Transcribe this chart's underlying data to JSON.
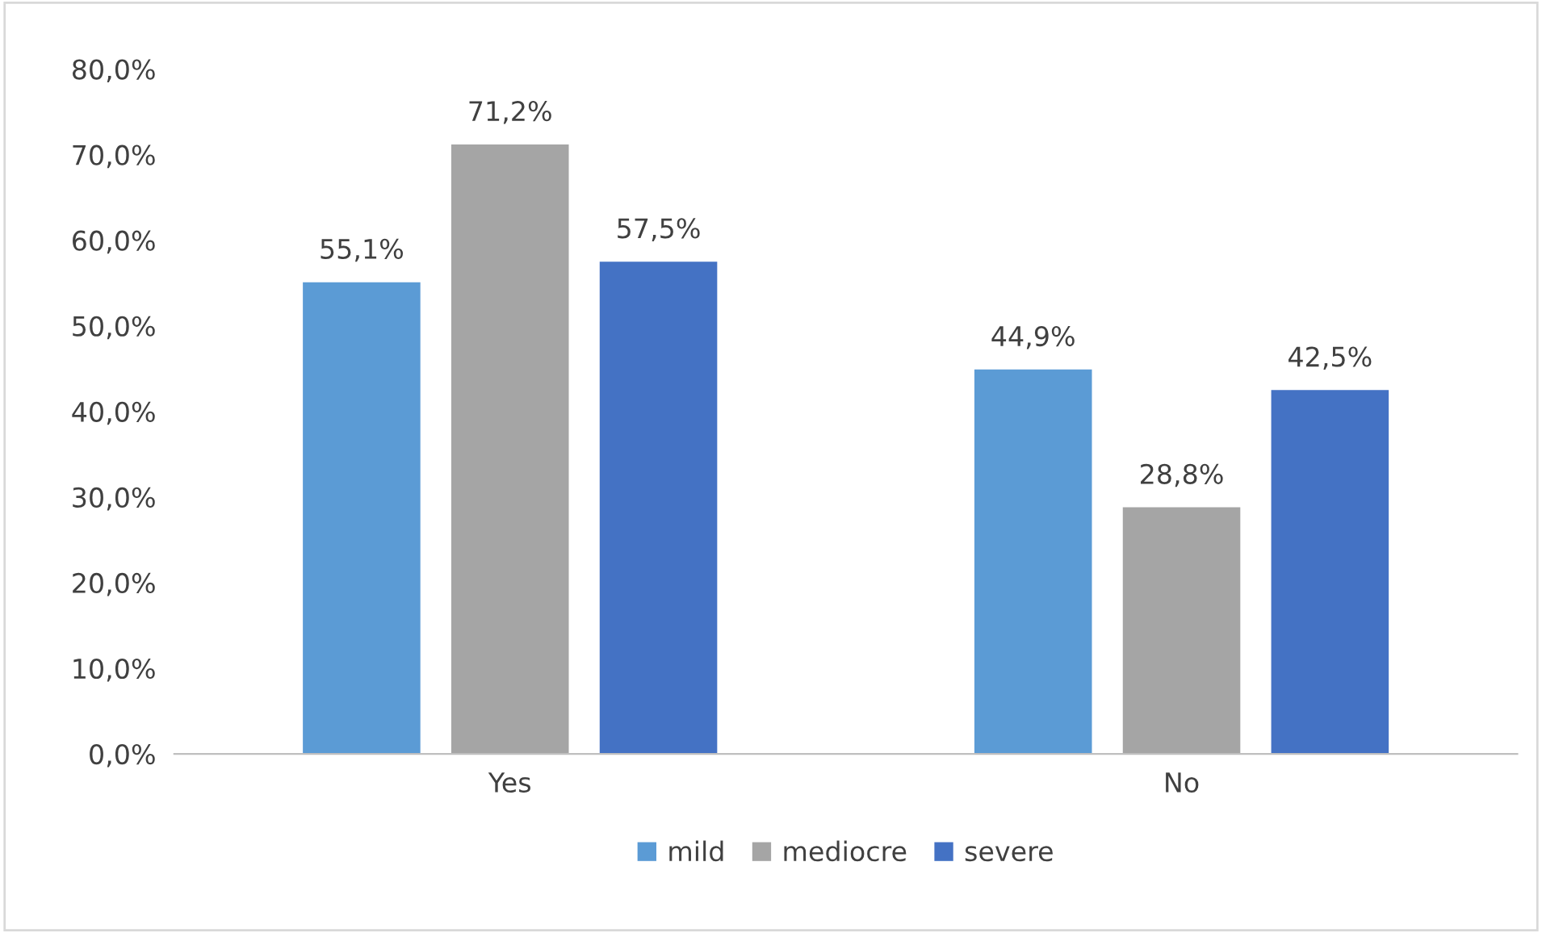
{
  "chart_data": {
    "type": "bar",
    "categories": [
      "Yes",
      "No"
    ],
    "series": [
      {
        "name": "mild",
        "color": "#5b9bd5",
        "values": [
          55.1,
          44.9
        ],
        "value_labels": [
          "55,1%",
          "44,9%"
        ]
      },
      {
        "name": "mediocre",
        "color": "#a5a5a5",
        "values": [
          71.2,
          28.8
        ],
        "value_labels": [
          "71,2%",
          "28,8%"
        ]
      },
      {
        "name": "severe",
        "color": "#4472c4",
        "values": [
          57.5,
          42.5
        ],
        "value_labels": [
          "57,5%",
          "42,5%"
        ]
      }
    ],
    "ylim": [
      0,
      80
    ],
    "yticks": [
      {
        "value": 0,
        "label": "0,0%"
      },
      {
        "value": 10,
        "label": "10,0%"
      },
      {
        "value": 20,
        "label": "20,0%"
      },
      {
        "value": 30,
        "label": "30,0%"
      },
      {
        "value": 40,
        "label": "40,0%"
      },
      {
        "value": 50,
        "label": "50,0%"
      },
      {
        "value": 60,
        "label": "60,0%"
      },
      {
        "value": 70,
        "label": "70,0%"
      },
      {
        "value": 80,
        "label": "80,0%"
      }
    ],
    "grid": false,
    "legend": "bottom"
  }
}
